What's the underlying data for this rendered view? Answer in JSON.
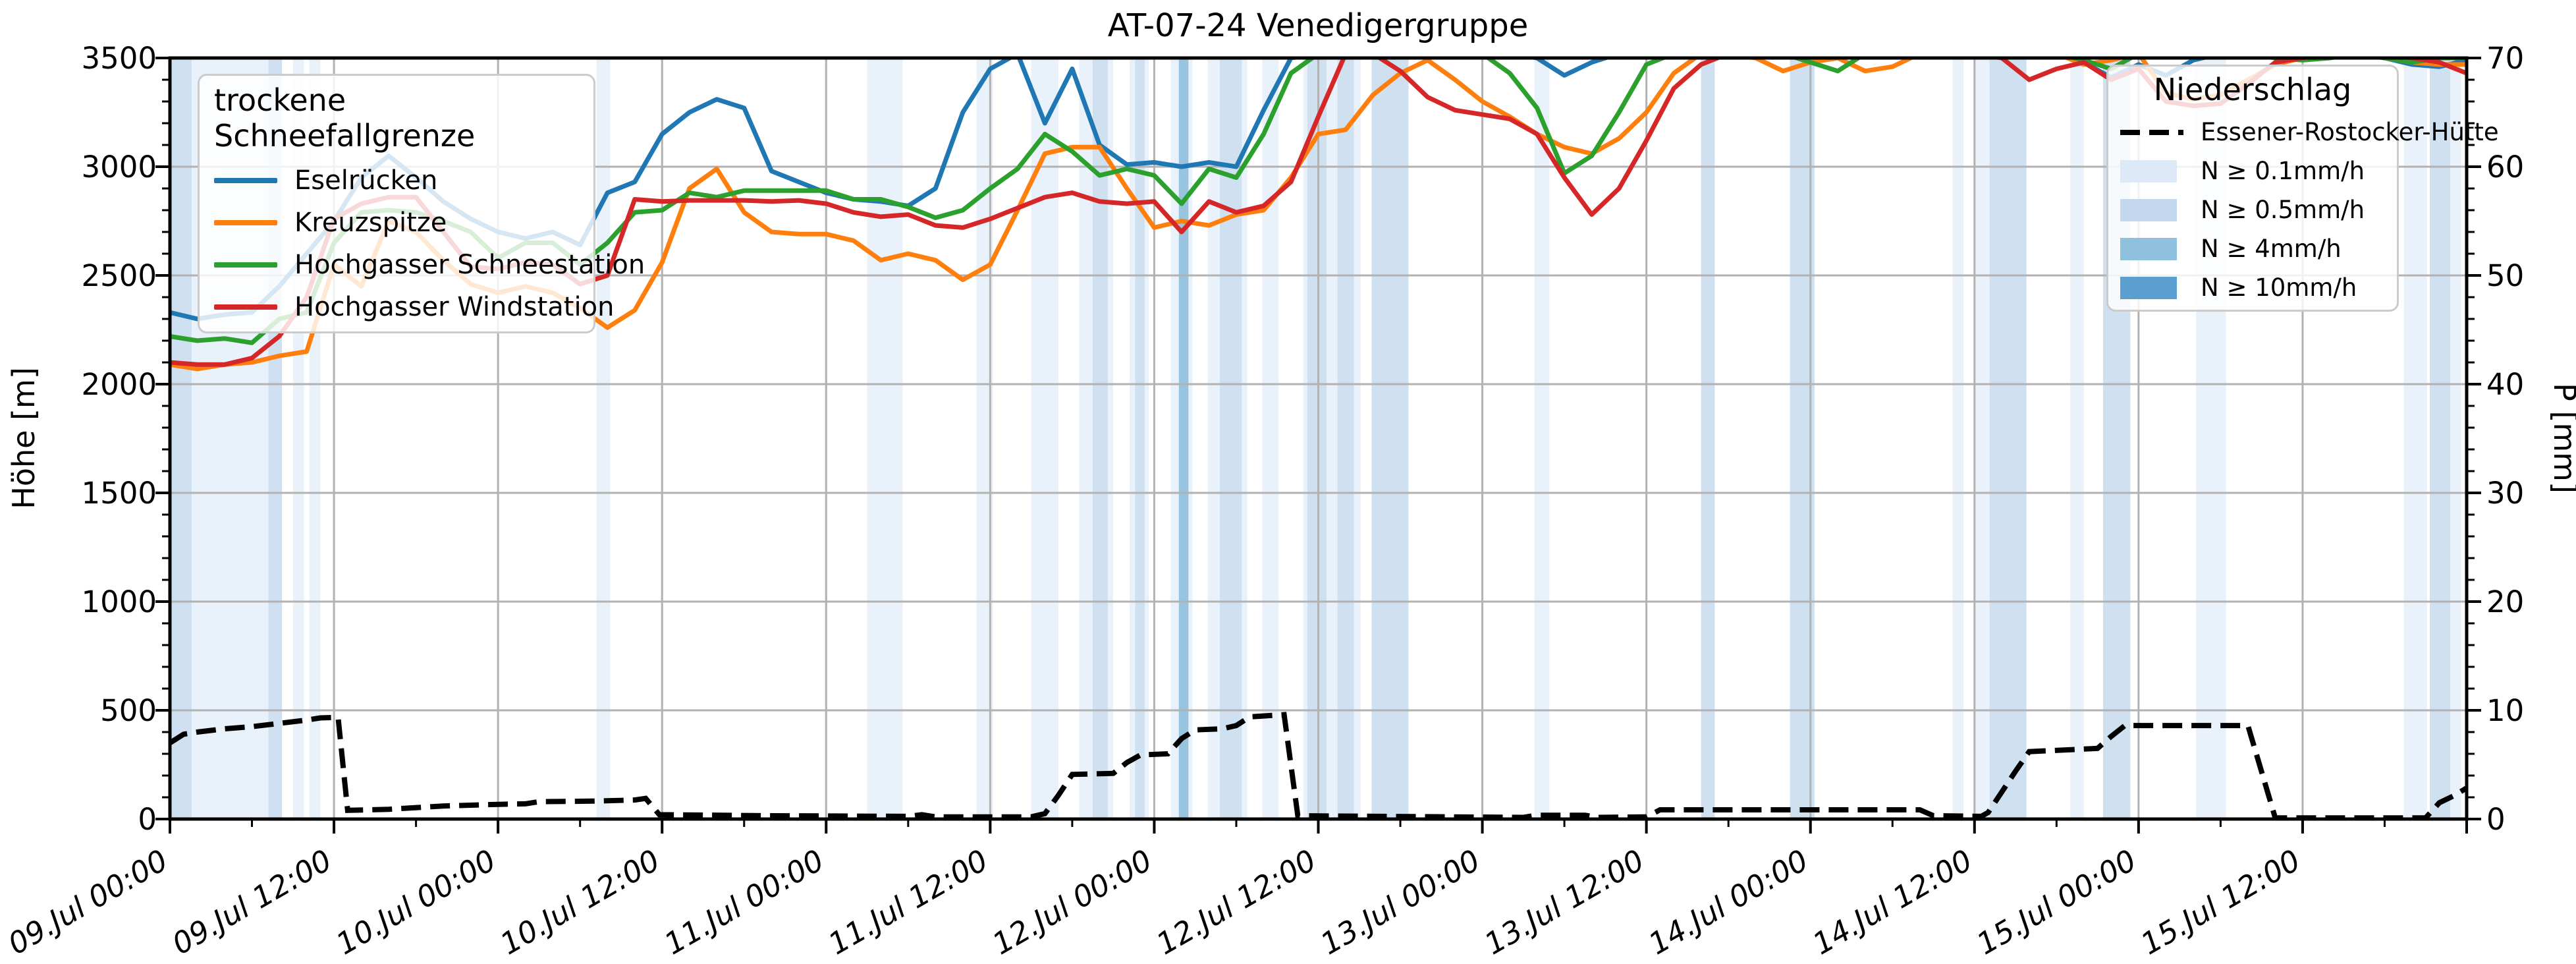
{
  "title": "AT-07-24 Venedigergruppe",
  "left_axis": {
    "label": "Höhe [m]",
    "ticks": [
      "0",
      "500",
      "1000",
      "1500",
      "2000",
      "2500",
      "3000",
      "3500"
    ]
  },
  "right_axis": {
    "label": "P [mm]",
    "ticks": [
      "0",
      "10",
      "20",
      "30",
      "40",
      "50",
      "60",
      "70"
    ]
  },
  "x_axis": {
    "tick_labels": [
      "09.Jul 00:00",
      "09.Jul 12:00",
      "10.Jul 00:00",
      "10.Jul 12:00",
      "11.Jul 00:00",
      "11.Jul 12:00",
      "12.Jul 00:00",
      "12.Jul 12:00",
      "13.Jul 00:00",
      "13.Jul 12:00",
      "14.Jul 00:00",
      "14.Jul 12:00",
      "15.Jul 00:00",
      "15.Jul 12:00"
    ]
  },
  "legend_snow": {
    "title": "trockene Schneefallgrenze",
    "items": [
      {
        "label": "Eselrücken",
        "color": "#1f77b4"
      },
      {
        "label": "Kreuzspitze",
        "color": "#ff7f0e"
      },
      {
        "label": "Hochgasser Schneestation",
        "color": "#2ca02c"
      },
      {
        "label": "Hochgasser Windstation",
        "color": "#d62728"
      }
    ]
  },
  "legend_precip": {
    "title": "Niederschlag",
    "line_label": "Essener-Rostocker-Hütte",
    "line_color": "#000000",
    "tiers": [
      {
        "label": "N ≥ 0.1mm/h",
        "tier": "0.1",
        "color": "#dde9f6"
      },
      {
        "label": "N ≥ 0.5mm/h",
        "tier": "0.5",
        "color": "#c3d8ee"
      },
      {
        "label": "N ≥ 4mm/h",
        "tier": "4",
        "color": "#8fc0dd"
      },
      {
        "label": "N ≥ 10mm/h",
        "tier": "10",
        "color": "#5a9fd0"
      }
    ]
  },
  "chart_data": {
    "type": "line",
    "title": "AT-07-24 Venedigergruppe",
    "xlabel": "",
    "ylabel_left": "Höhe [m]",
    "ylabel_right": "P [mm]",
    "x_unit": "hours since 09 Jul 00:00",
    "x_range_hours": [
      0,
      168
    ],
    "x_major_tick_every_h": 12,
    "x_minor_tick_every_h": 6,
    "left_ylim": [
      0,
      3500
    ],
    "right_ylim": [
      0,
      70
    ],
    "grid": true,
    "series_step_h": 2,
    "series": [
      {
        "name": "Eselrücken",
        "color": "#1f77b4",
        "values": [
          2330,
          2300,
          2320,
          2330,
          2450,
          2600,
          2750,
          2950,
          3050,
          2950,
          2840,
          2760,
          2700,
          2670,
          2700,
          2640,
          2880,
          2930,
          3150,
          3250,
          3310,
          3270,
          2980,
          2930,
          2880,
          2850,
          2840,
          2820,
          2900,
          3250,
          3450,
          3520,
          3200,
          3450,
          3100,
          3010,
          3020,
          3000,
          3020,
          3000,
          3260,
          3500,
          3520,
          3520,
          3520,
          3520,
          3520,
          3520,
          3520,
          3520,
          3500,
          3420,
          3480,
          3520,
          3520,
          3520,
          3520,
          3520,
          3520,
          3520,
          3520,
          3520,
          3520,
          3520,
          3520,
          3520,
          3520,
          3520,
          3520,
          3520,
          3480,
          3410,
          3470,
          3420,
          3490,
          3520,
          3520,
          3520,
          3520,
          3520,
          3520,
          3500,
          3470,
          3460,
          3490
        ]
      },
      {
        "name": "Kreuzspitze",
        "color": "#ff7f0e",
        "values": [
          2090,
          2070,
          2090,
          2100,
          2130,
          2150,
          2550,
          2450,
          2750,
          2700,
          2570,
          2460,
          2420,
          2450,
          2420,
          2350,
          2260,
          2340,
          2560,
          2900,
          2990,
          2790,
          2700,
          2690,
          2690,
          2660,
          2570,
          2600,
          2570,
          2480,
          2550,
          2800,
          3060,
          3090,
          3090,
          2900,
          2720,
          2750,
          2730,
          2780,
          2800,
          2950,
          3150,
          3170,
          3330,
          3430,
          3490,
          3400,
          3300,
          3230,
          3150,
          3090,
          3060,
          3130,
          3250,
          3430,
          3520,
          3520,
          3500,
          3440,
          3480,
          3500,
          3440,
          3460,
          3520,
          3520,
          3520,
          3520,
          3520,
          3520,
          3470,
          3490,
          3520,
          3340,
          3310,
          3330,
          3400,
          3470,
          3500,
          3520,
          3520,
          3500,
          3480,
          3470,
          3470
        ]
      },
      {
        "name": "Hochgasser Schneestation",
        "color": "#2ca02c",
        "values": [
          2220,
          2200,
          2210,
          2190,
          2300,
          2330,
          2650,
          2790,
          2800,
          2790,
          2750,
          2700,
          2580,
          2650,
          2650,
          2550,
          2650,
          2790,
          2800,
          2880,
          2860,
          2890,
          2890,
          2890,
          2890,
          2850,
          2850,
          2815,
          2765,
          2800,
          2900,
          2990,
          3150,
          3070,
          2960,
          2990,
          2960,
          2830,
          2990,
          2950,
          3150,
          3430,
          3520,
          3520,
          3520,
          3520,
          3520,
          3520,
          3520,
          3430,
          3270,
          2970,
          3050,
          3250,
          3470,
          3520,
          3520,
          3520,
          3520,
          3520,
          3480,
          3440,
          3520,
          3520,
          3520,
          3520,
          3520,
          3520,
          3520,
          3520,
          3490,
          3450,
          3520,
          3520,
          3520,
          3520,
          3520,
          3500,
          3490,
          3500,
          3520,
          3500,
          3480,
          3500,
          3500
        ]
      },
      {
        "name": "Hochgasser Windstation",
        "color": "#d62728",
        "values": [
          2100,
          2090,
          2090,
          2120,
          2220,
          2400,
          2760,
          2830,
          2860,
          2860,
          2700,
          2540,
          2530,
          2560,
          2550,
          2460,
          2500,
          2850,
          2840,
          2845,
          2845,
          2845,
          2840,
          2845,
          2830,
          2790,
          2770,
          2780,
          2730,
          2720,
          2760,
          2810,
          2860,
          2880,
          2840,
          2830,
          2840,
          2700,
          2840,
          2790,
          2820,
          2930,
          3230,
          3520,
          3520,
          3440,
          3320,
          3260,
          3240,
          3220,
          3150,
          2950,
          2780,
          2900,
          3120,
          3360,
          3470,
          3520,
          3520,
          3520,
          3520,
          3520,
          3520,
          3520,
          3520,
          3520,
          3520,
          3500,
          3400,
          3450,
          3480,
          3400,
          3450,
          3300,
          3280,
          3290,
          3380,
          3480,
          3500,
          3520,
          3520,
          3520,
          3500,
          3480,
          3430
        ]
      }
    ],
    "precip_line": {
      "name": "Essener-Rostocker-Hütte",
      "color": "#000000",
      "style": "dashed",
      "unit": "mm",
      "points": [
        [
          0,
          7.0
        ],
        [
          1,
          7.8
        ],
        [
          2,
          8.0
        ],
        [
          4,
          8.3
        ],
        [
          6,
          8.5
        ],
        [
          8,
          8.8
        ],
        [
          10,
          9.1
        ],
        [
          11,
          9.3
        ],
        [
          12.3,
          9.35
        ],
        [
          13,
          0.8
        ],
        [
          16,
          0.9
        ],
        [
          20,
          1.2
        ],
        [
          24,
          1.35
        ],
        [
          26,
          1.4
        ],
        [
          27,
          1.6
        ],
        [
          31,
          1.65
        ],
        [
          34,
          1.75
        ],
        [
          34.8,
          1.9
        ],
        [
          35.8,
          0.4
        ],
        [
          44,
          0.3
        ],
        [
          54,
          0.25
        ],
        [
          55,
          0.4
        ],
        [
          56,
          0.2
        ],
        [
          63,
          0.2
        ],
        [
          64,
          0.5
        ],
        [
          65,
          2.2
        ],
        [
          66,
          4.1
        ],
        [
          69,
          4.2
        ],
        [
          70,
          5.2
        ],
        [
          71,
          5.9
        ],
        [
          73,
          6.0
        ],
        [
          74,
          7.4
        ],
        [
          75,
          8.2
        ],
        [
          77,
          8.3
        ],
        [
          78,
          8.6
        ],
        [
          79,
          9.4
        ],
        [
          81.5,
          9.6
        ],
        [
          82.5,
          0.3
        ],
        [
          99,
          0.15
        ],
        [
          100,
          0.35
        ],
        [
          103.5,
          0.35
        ],
        [
          104.5,
          0.15
        ],
        [
          108,
          0.2
        ],
        [
          109,
          0.85
        ],
        [
          128,
          0.85
        ],
        [
          129,
          0.3
        ],
        [
          132.5,
          0.25
        ],
        [
          133,
          0.6
        ],
        [
          134,
          2.5
        ],
        [
          135,
          4.4
        ],
        [
          136,
          6.2
        ],
        [
          141,
          6.5
        ],
        [
          142,
          7.6
        ],
        [
          143,
          8.6
        ],
        [
          152,
          8.6
        ],
        [
          154,
          0.1
        ],
        [
          165,
          0.1
        ],
        [
          166,
          1.5
        ],
        [
          167,
          2.1
        ],
        [
          168,
          2.85
        ]
      ]
    },
    "precip_bands": [
      [
        0,
        1.6,
        "0.5"
      ],
      [
        1.6,
        7.2,
        "0.1"
      ],
      [
        7.2,
        8.2,
        "0.5"
      ],
      [
        9.0,
        9.8,
        "0.1"
      ],
      [
        10.2,
        11.0,
        "0.1"
      ],
      [
        31.2,
        32.2,
        "0.1"
      ],
      [
        51.0,
        53.6,
        "0.1"
      ],
      [
        59.0,
        60.2,
        "0.1"
      ],
      [
        63.0,
        65.0,
        "0.1"
      ],
      [
        66.5,
        69.0,
        "0.1"
      ],
      [
        67.5,
        68.6,
        "0.5"
      ],
      [
        70.2,
        71.6,
        "0.1"
      ],
      [
        70.6,
        71.3,
        "0.5"
      ],
      [
        73.2,
        74.8,
        "0.1"
      ],
      [
        73.8,
        74.5,
        "4"
      ],
      [
        75.9,
        78.8,
        "0.1"
      ],
      [
        76.8,
        78.4,
        "0.5"
      ],
      [
        79.9,
        81.1,
        "0.1"
      ],
      [
        82.9,
        87.1,
        "0.1"
      ],
      [
        83.2,
        84.6,
        "0.5"
      ],
      [
        85.4,
        86.6,
        "0.5"
      ],
      [
        87.9,
        90.6,
        "0.5"
      ],
      [
        99.8,
        100.9,
        "0.1"
      ],
      [
        112.0,
        113.0,
        "0.5"
      ],
      [
        118.5,
        120.3,
        "0.5"
      ],
      [
        130.4,
        131.2,
        "0.1"
      ],
      [
        132.0,
        133.1,
        "0.1"
      ],
      [
        133.1,
        135.8,
        "0.5"
      ],
      [
        139.0,
        140.0,
        "0.1"
      ],
      [
        141.4,
        143.4,
        "0.5"
      ],
      [
        148.2,
        150.4,
        "0.1"
      ],
      [
        163.4,
        165.1,
        "0.1"
      ],
      [
        165.3,
        166.8,
        "0.5"
      ],
      [
        166.8,
        167.6,
        "0.1"
      ]
    ],
    "band_tier_colors": {
      "0.1": "#e9f1fa",
      "0.5": "#cfe0f1",
      "4": "#99c4e0",
      "10": "#5b9fd0"
    },
    "legend_positions": {
      "snow": "upper left",
      "precip": "upper right"
    }
  }
}
